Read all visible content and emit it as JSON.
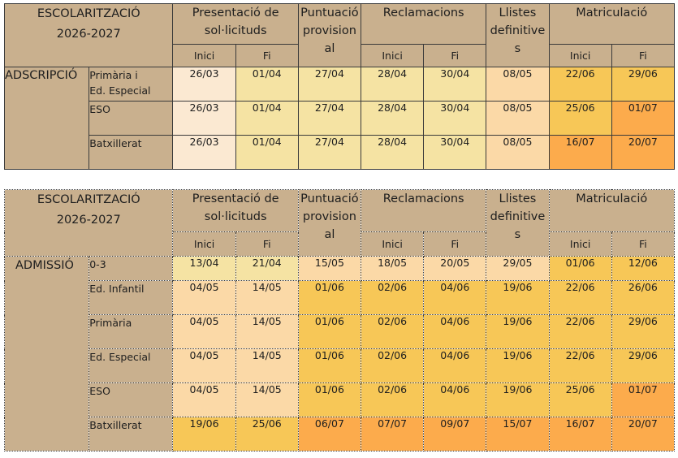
{
  "header": {
    "title_line1": "ESCOLARITZACIÓ",
    "title_line2": "2026-2027",
    "presentacio_line1": "Presentació de",
    "presentacio_line2": "sol·licituds",
    "puntuacio_line1": "Puntuació",
    "puntuacio_line2": "provision",
    "puntuacio_line3": "al",
    "reclamacions": "Reclamacions",
    "llistes_line1": "Llistes",
    "llistes_line2": "definitive",
    "llistes_line3": "s",
    "matriculacio": "Matriculació",
    "inici": "Inici",
    "fi": "Fi"
  },
  "adscripcio": {
    "section_label": "ADSCRIPCIÓ",
    "rows": [
      {
        "label1": "Primària i",
        "label2": "Ed. Especial",
        "pres_inici": "26/03",
        "pres_fi": "01/04",
        "puntuacio": "27/04",
        "recl_inici": "28/04",
        "recl_fi": "30/04",
        "llistes": "08/05",
        "mat_inici": "22/06",
        "mat_fi": "29/06"
      },
      {
        "label1": "ESO",
        "label2": "",
        "pres_inici": "26/03",
        "pres_fi": "01/04",
        "puntuacio": "27/04",
        "recl_inici": "28/04",
        "recl_fi": "30/04",
        "llistes": "08/05",
        "mat_inici": "25/06",
        "mat_fi": "01/07"
      },
      {
        "label1": "Batxillerat",
        "label2": "",
        "pres_inici": "26/03",
        "pres_fi": "01/04",
        "puntuacio": "27/04",
        "recl_inici": "28/04",
        "recl_fi": "30/04",
        "llistes": "08/05",
        "mat_inici": "16/07",
        "mat_fi": "20/07"
      }
    ]
  },
  "admissio": {
    "section_label": "ADMISSIÓ",
    "rows": [
      {
        "label1": "0-3",
        "pres_inici": "13/04",
        "pres_fi": "21/04",
        "puntuacio": "15/05",
        "recl_inici": "18/05",
        "recl_fi": "20/05",
        "llistes": "29/05",
        "mat_inici": "01/06",
        "mat_fi": "12/06"
      },
      {
        "label1": "Ed. Infantil",
        "pres_inici": "04/05",
        "pres_fi": "14/05",
        "puntuacio": "01/06",
        "recl_inici": "02/06",
        "recl_fi": "04/06",
        "llistes": "19/06",
        "mat_inici": "22/06",
        "mat_fi": "26/06"
      },
      {
        "label1": "Primària",
        "pres_inici": "04/05",
        "pres_fi": "14/05",
        "puntuacio": "01/06",
        "recl_inici": "02/06",
        "recl_fi": "04/06",
        "llistes": "19/06",
        "mat_inici": "22/06",
        "mat_fi": "29/06"
      },
      {
        "label1": "Ed. Especial",
        "pres_inici": "04/05",
        "pres_fi": "14/05",
        "puntuacio": "01/06",
        "recl_inici": "02/06",
        "recl_fi": "04/06",
        "llistes": "19/06",
        "mat_inici": "22/06",
        "mat_fi": "29/06"
      },
      {
        "label1": "ESO",
        "pres_inici": "04/05",
        "pres_fi": "14/05",
        "puntuacio": "01/06",
        "recl_inici": "02/06",
        "recl_fi": "04/06",
        "llistes": "19/06",
        "mat_inici": "25/06",
        "mat_fi": "01/07"
      },
      {
        "label1": "Batxillerat",
        "pres_inici": "19/06",
        "pres_fi": "25/06",
        "puntuacio": "06/07",
        "recl_inici": "07/07",
        "recl_fi": "09/07",
        "llistes": "15/07",
        "mat_inici": "16/07",
        "mat_fi": "20/07"
      }
    ]
  },
  "colors": {
    "header_bg": "#c9b08e",
    "very_pale": "#fbe9d2",
    "pale_yellow": "#f5e3a3",
    "peach": "#fbd9a7",
    "gold": "#f7c757",
    "orange": "#fcab4c"
  }
}
